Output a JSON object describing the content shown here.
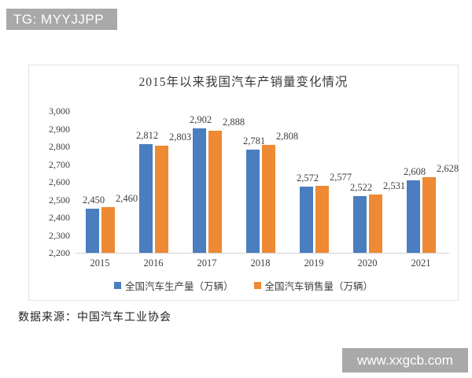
{
  "badge_top": {
    "text": "TG: MYYJJPP"
  },
  "watermark": {
    "text": "www.xxgcb.com"
  },
  "source_note": "数据来源：中国汽车工业协会",
  "theme": {
    "badge_bg": "#a9a9a9",
    "chart_border": "#e4e4e4",
    "axis_color": "#d2d2d2",
    "production_blue": "#4a7ebe",
    "sales_orange": "#ed8a33"
  },
  "chart_data": {
    "type": "bar",
    "title": "2015年以来我国汽车产销量变化情况",
    "categories": [
      "2015",
      "2016",
      "2017",
      "2018",
      "2019",
      "2020",
      "2021"
    ],
    "series": [
      {
        "name": "全国汽车生产量（万辆）",
        "color": "#4a7ebe",
        "values": [
          2450,
          2812,
          2902,
          2781,
          2572,
          2522,
          2608
        ]
      },
      {
        "name": "全国汽车销售量（万辆）",
        "color": "#ed8a33",
        "values": [
          2460,
          2803,
          2888,
          2808,
          2577,
          2531,
          2628
        ]
      }
    ],
    "ylim": [
      2200,
      3000
    ],
    "ytick_step": 100,
    "ytick_labels": [
      "2,200",
      "2,300",
      "2,400",
      "2,500",
      "2,600",
      "2,700",
      "2,800",
      "2,900",
      "3,000"
    ],
    "grid": false,
    "legend_position": "bottom",
    "data_labels": true
  }
}
